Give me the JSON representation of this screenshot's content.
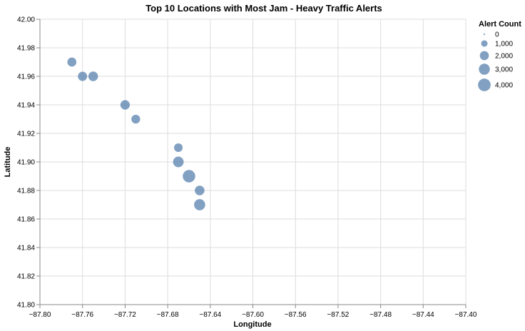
{
  "chart_data": {
    "type": "scatter",
    "title": "Top 10 Locations with Most Jam - Heavy Traffic Alerts",
    "xlabel": "Longitude",
    "ylabel": "Latitude",
    "xlim": [
      -87.8,
      -87.4
    ],
    "ylim": [
      41.8,
      42.0
    ],
    "xticks": [
      -87.8,
      -87.76,
      -87.72,
      -87.68,
      -87.64,
      -87.6,
      -87.56,
      -87.52,
      -87.48,
      -87.44,
      -87.4
    ],
    "xtick_labels": [
      "−87.80",
      "−87.76",
      "−87.72",
      "−87.68",
      "−87.64",
      "−87.60",
      "−87.56",
      "−87.52",
      "−87.48",
      "−87.44",
      "−87.40"
    ],
    "yticks": [
      41.8,
      41.82,
      41.84,
      41.86,
      41.88,
      41.9,
      41.92,
      41.94,
      41.96,
      41.98,
      42.0
    ],
    "ytick_labels": [
      "41.80",
      "41.82",
      "41.84",
      "41.86",
      "41.88",
      "41.90",
      "41.92",
      "41.94",
      "41.96",
      "41.98",
      "42.00"
    ],
    "grid": true,
    "color": "#4c78a8",
    "points": [
      {
        "x": -87.77,
        "y": 41.97,
        "size": 2000
      },
      {
        "x": -87.76,
        "y": 41.96,
        "size": 2100
      },
      {
        "x": -87.75,
        "y": 41.96,
        "size": 2300
      },
      {
        "x": -87.72,
        "y": 41.94,
        "size": 2200
      },
      {
        "x": -87.71,
        "y": 41.93,
        "size": 1900
      },
      {
        "x": -87.67,
        "y": 41.91,
        "size": 1800
      },
      {
        "x": -87.67,
        "y": 41.9,
        "size": 2800
      },
      {
        "x": -87.66,
        "y": 41.89,
        "size": 3900
      },
      {
        "x": -87.65,
        "y": 41.88,
        "size": 2300
      },
      {
        "x": -87.65,
        "y": 41.87,
        "size": 3100
      }
    ],
    "legend": {
      "title": "Alert Count",
      "placement": "top-right",
      "entries": [
        {
          "label": "0",
          "value": 0
        },
        {
          "label": "1,000",
          "value": 1000
        },
        {
          "label": "2,000",
          "value": 2000
        },
        {
          "label": "3,000",
          "value": 3000
        },
        {
          "label": "4,000",
          "value": 4000
        }
      ]
    }
  }
}
